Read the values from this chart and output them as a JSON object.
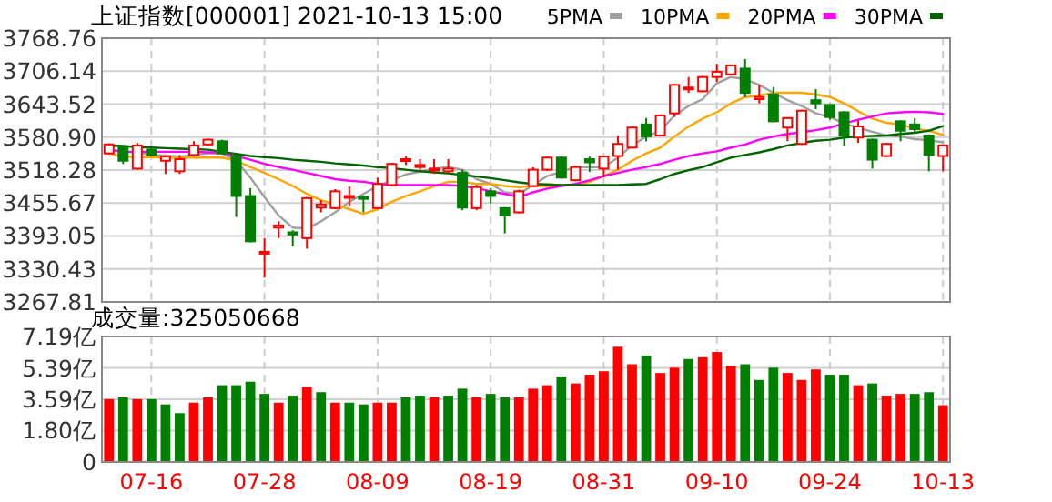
{
  "chart_data": [
    {
      "type": "candlestick",
      "title": "上证指数[000001]  2021-10-13 15:00",
      "categories": [
        null,
        null,
        null,
        null,
        null,
        null,
        null,
        null,
        null,
        null,
        null,
        null,
        null,
        null,
        null,
        null,
        null,
        null,
        null,
        null,
        null,
        null,
        null,
        null,
        null,
        null,
        null,
        null,
        null,
        null,
        null,
        null,
        null,
        null,
        null,
        null,
        null,
        null,
        null,
        null,
        null,
        null,
        null,
        null,
        null,
        null,
        null,
        null,
        null,
        null,
        null,
        null,
        null,
        null,
        null,
        null,
        null,
        null,
        null,
        null
      ],
      "ohlc": [
        [
          3550,
          3569,
          3548,
          3567
        ],
        [
          3562,
          3565,
          3530,
          3536
        ],
        [
          3521,
          3570,
          3519,
          3565
        ],
        [
          3557,
          3560,
          3545,
          3547
        ],
        [
          3536,
          3546,
          3511,
          3544
        ],
        [
          3516,
          3547,
          3511,
          3539
        ],
        [
          3547,
          3573,
          3545,
          3565
        ],
        [
          3567,
          3578,
          3565,
          3576
        ],
        [
          3573,
          3576,
          3548,
          3550
        ],
        [
          3545,
          3548,
          3429,
          3469
        ],
        [
          3469,
          3484,
          3381,
          3383
        ],
        [
          3360,
          3389,
          3314,
          3363
        ],
        [
          3409,
          3421,
          3389,
          3413
        ],
        [
          3400,
          3404,
          3373,
          3396
        ],
        [
          3389,
          3467,
          3369,
          3465
        ],
        [
          3447,
          3461,
          3438,
          3453
        ],
        [
          3446,
          3482,
          3444,
          3478
        ],
        [
          3467,
          3487,
          3450,
          3469
        ],
        [
          3467,
          3469,
          3438,
          3464
        ],
        [
          3446,
          3504,
          3444,
          3492
        ],
        [
          3490,
          3532,
          3488,
          3530
        ],
        [
          3536,
          3544,
          3528,
          3539
        ],
        [
          3524,
          3539,
          3519,
          3528
        ],
        [
          3519,
          3539,
          3511,
          3521
        ],
        [
          3516,
          3539,
          3513,
          3521
        ],
        [
          3513,
          3519,
          3442,
          3447
        ],
        [
          3446,
          3490,
          3442,
          3486
        ],
        [
          3478,
          3484,
          3455,
          3469
        ],
        [
          3446,
          3448,
          3398,
          3432
        ],
        [
          3438,
          3481,
          3436,
          3478
        ],
        [
          3488,
          3524,
          3486,
          3519
        ],
        [
          3519,
          3544,
          3517,
          3542
        ],
        [
          3542,
          3544,
          3502,
          3504
        ],
        [
          3499,
          3527,
          3497,
          3524
        ],
        [
          3539,
          3544,
          3515,
          3533
        ],
        [
          3521,
          3546,
          3504,
          3544
        ],
        [
          3545,
          3584,
          3519,
          3568
        ],
        [
          3561,
          3601,
          3559,
          3599
        ],
        [
          3605,
          3617,
          3573,
          3582
        ],
        [
          3584,
          3624,
          3582,
          3622
        ],
        [
          3626,
          3682,
          3619,
          3680
        ],
        [
          3673,
          3695,
          3665,
          3675
        ],
        [
          3668,
          3697,
          3666,
          3695
        ],
        [
          3695,
          3720,
          3686,
          3705
        ],
        [
          3700,
          3719,
          3698,
          3717
        ],
        [
          3711,
          3729,
          3657,
          3665
        ],
        [
          3653,
          3680,
          3645,
          3657
        ],
        [
          3662,
          3676,
          3609,
          3611
        ],
        [
          3599,
          3619,
          3573,
          3617
        ],
        [
          3568,
          3633,
          3566,
          3631
        ],
        [
          3651,
          3672,
          3634,
          3645
        ],
        [
          3642,
          3644,
          3614,
          3619
        ],
        [
          3628,
          3630,
          3565,
          3584
        ],
        [
          3580,
          3613,
          3570,
          3601
        ],
        [
          3576,
          3578,
          3521,
          3538
        ],
        [
          3545,
          3570,
          3543,
          3568
        ],
        [
          3611,
          3613,
          3573,
          3593
        ],
        [
          3605,
          3617,
          3588,
          3596
        ],
        [
          3584,
          3586,
          3516,
          3547
        ],
        [
          3545,
          3567,
          3516,
          3565
        ]
      ],
      "colors": [
        "#ff0000",
        "#008000",
        "#ff0000",
        "#008000",
        "#ff0000",
        "#ff0000",
        "#ff0000",
        "#ff0000",
        "#008000",
        "#008000",
        "#008000",
        "#ff0000",
        "#ff0000",
        "#008000",
        "#ff0000",
        "#ff0000",
        "#ff0000",
        "#ff0000",
        "#008000",
        "#ff0000",
        "#ff0000",
        "#ff0000",
        "#ff0000",
        "#ff0000",
        "#ff0000",
        "#008000",
        "#ff0000",
        "#008000",
        "#008000",
        "#ff0000",
        "#ff0000",
        "#ff0000",
        "#008000",
        "#ff0000",
        "#008000",
        "#ff0000",
        "#ff0000",
        "#ff0000",
        "#008000",
        "#ff0000",
        "#ff0000",
        "#ff0000",
        "#ff0000",
        "#ff0000",
        "#ff0000",
        "#008000",
        "#ff0000",
        "#008000",
        "#ff0000",
        "#ff0000",
        "#008000",
        "#008000",
        "#008000",
        "#ff0000",
        "#008000",
        "#ff0000",
        "#008000",
        "#008000",
        "#008000",
        "#ff0000"
      ],
      "series": [
        {
          "type": "line",
          "name": "5PMA",
          "color": "#a0a0a0",
          "values": [
            3557,
            3553,
            3552,
            3547,
            3546,
            3544,
            3547,
            3550,
            3550,
            3536,
            3504,
            3467,
            3432,
            3409,
            3407,
            3421,
            3438,
            3458,
            3473,
            3488,
            3499,
            3510,
            3515,
            3521,
            3524,
            3519,
            3501,
            3492,
            3476,
            3473,
            3490,
            3507,
            3515,
            3524,
            3524,
            3524,
            3542,
            3565,
            3582,
            3593,
            3622,
            3640,
            3653,
            3683,
            3695,
            3691,
            3680,
            3665,
            3651,
            3640,
            3626,
            3619,
            3607,
            3599,
            3591,
            3584,
            3582,
            3577,
            3575,
            3571
          ]
        },
        {
          "type": "line",
          "name": "10PMA",
          "color": "#ffa500",
          "values": [
            3550,
            3544,
            3543,
            3543,
            3542,
            3542,
            3542,
            3542,
            3542,
            3536,
            3524,
            3513,
            3501,
            3488,
            3473,
            3461,
            3453,
            3444,
            3435,
            3444,
            3458,
            3469,
            3478,
            3488,
            3496,
            3496,
            3492,
            3492,
            3488,
            3486,
            3488,
            3488,
            3489,
            3490,
            3496,
            3507,
            3519,
            3536,
            3550,
            3561,
            3582,
            3601,
            3616,
            3628,
            3645,
            3657,
            3660,
            3665,
            3665,
            3665,
            3662,
            3657,
            3645,
            3630,
            3616,
            3608,
            3605,
            3597,
            3593,
            3585
          ]
        },
        {
          "type": "line",
          "name": "20PMA",
          "color": "#ff00ff",
          "values": [
            3557,
            3553,
            3553,
            3553,
            3553,
            3553,
            3553,
            3552,
            3551,
            3545,
            3538,
            3530,
            3524,
            3519,
            3513,
            3507,
            3501,
            3498,
            3496,
            3492,
            3490,
            3490,
            3490,
            3490,
            3490,
            3488,
            3484,
            3478,
            3473,
            3467,
            3476,
            3483,
            3488,
            3492,
            3499,
            3507,
            3513,
            3519,
            3524,
            3530,
            3538,
            3545,
            3550,
            3554,
            3561,
            3567,
            3576,
            3582,
            3587,
            3590,
            3594,
            3599,
            3607,
            3614,
            3620,
            3626,
            3628,
            3629,
            3628,
            3625
          ]
        },
        {
          "type": "line",
          "name": "30PMA",
          "color": "#006400",
          "values": [
            3565,
            3564,
            3562,
            3561,
            3560,
            3559,
            3558,
            3557,
            3553,
            3549,
            3545,
            3543,
            3541,
            3538,
            3536,
            3534,
            3531,
            3529,
            3527,
            3524,
            3522,
            3519,
            3516,
            3514,
            3512,
            3509,
            3506,
            3503,
            3499,
            3495,
            3492,
            3491,
            3490,
            3490,
            3490,
            3490,
            3490,
            3491,
            3492,
            3501,
            3511,
            3518,
            3524,
            3533,
            3542,
            3547,
            3552,
            3558,
            3565,
            3570,
            3574,
            3576,
            3580,
            3582,
            3583,
            3584,
            3587,
            3589,
            3593,
            3602
          ]
        }
      ],
      "ylim": [
        3267.81,
        3768.76
      ],
      "yticks": [
        3267.81,
        3330.43,
        3393.05,
        3455.67,
        3518.28,
        {
          "value": 3580.9,
          "label": "3580.90"
        },
        3643.52,
        3706.14,
        3768.76
      ],
      "grid": true,
      "legend": "top right",
      "tick_labels": "y"
    },
    {
      "type": "bar",
      "title": "成交量:325050668",
      "categories": [
        null,
        null,
        null,
        "07-16",
        null,
        null,
        null,
        null,
        null,
        null,
        null,
        "07-28",
        null,
        null,
        null,
        null,
        null,
        null,
        null,
        "08-09",
        null,
        null,
        null,
        null,
        null,
        null,
        null,
        "08-19",
        null,
        null,
        null,
        null,
        null,
        null,
        null,
        "08-31",
        null,
        null,
        null,
        null,
        null,
        null,
        null,
        "09-10",
        null,
        null,
        null,
        null,
        null,
        null,
        null,
        "09-24",
        null,
        null,
        null,
        null,
        null,
        null,
        null,
        "10-13"
      ],
      "values": [
        3.6,
        3.7,
        3.6,
        3.6,
        3.3,
        2.8,
        3.4,
        3.7,
        4.4,
        4.4,
        4.6,
        3.9,
        3.4,
        3.8,
        4.3,
        4.0,
        3.4,
        3.4,
        3.3,
        3.4,
        3.4,
        3.7,
        3.8,
        3.7,
        3.8,
        4.2,
        3.7,
        3.9,
        3.7,
        3.7,
        4.2,
        4.4,
        4.9,
        4.5,
        5.0,
        5.2,
        6.6,
        5.6,
        6.1,
        5.1,
        5.4,
        5.9,
        6.0,
        6.3,
        5.5,
        5.6,
        4.7,
        5.4,
        5.1,
        4.7,
        5.3,
        5.0,
        5.0,
        4.4,
        4.5,
        3.8,
        3.9,
        3.9,
        4.0,
        3.25
      ],
      "colors": [
        "#ff0000",
        "#008000",
        "#ff0000",
        "#008000",
        "#008000",
        "#008000",
        "#ff0000",
        "#ff0000",
        "#008000",
        "#008000",
        "#008000",
        "#008000",
        "#ff0000",
        "#008000",
        "#ff0000",
        "#008000",
        "#ff0000",
        "#008000",
        "#008000",
        "#ff0000",
        "#ff0000",
        "#008000",
        "#008000",
        "#ff0000",
        "#008000",
        "#008000",
        "#ff0000",
        "#008000",
        "#008000",
        "#ff0000",
        "#ff0000",
        "#ff0000",
        "#008000",
        "#ff0000",
        "#ff0000",
        "#ff0000",
        "#ff0000",
        "#ff0000",
        "#008000",
        "#ff0000",
        "#ff0000",
        "#008000",
        "#ff0000",
        "#ff0000",
        "#ff0000",
        "#008000",
        "#008000",
        "#008000",
        "#ff0000",
        "#ff0000",
        "#ff0000",
        "#008000",
        "#008000",
        "#ff0000",
        "#008000",
        "#ff0000",
        "#ff0000",
        "#008000",
        "#008000",
        "#ff0000"
      ],
      "ylim": [
        0,
        7.19
      ],
      "yticks": [
        0,
        {
          "value": 1.8,
          "label": "1.80亿"
        },
        {
          "value": 3.59,
          "label": "3.59亿"
        },
        {
          "value": 5.39,
          "label": "5.39亿"
        },
        {
          "value": 7.19,
          "label": "7.19亿"
        }
      ],
      "grid": true
    }
  ]
}
